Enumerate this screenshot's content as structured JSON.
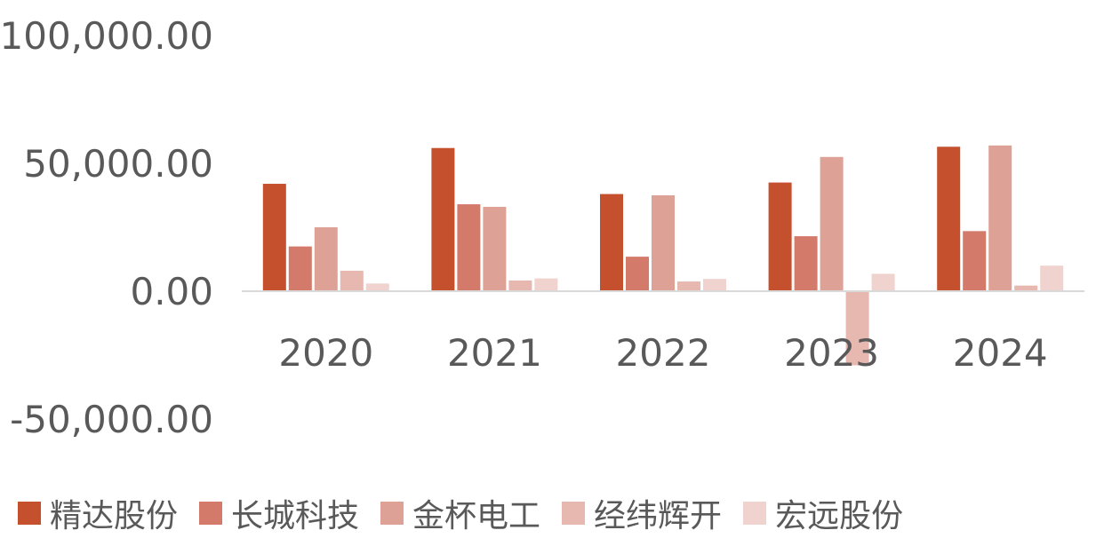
{
  "chart_data": {
    "type": "bar",
    "title": "",
    "xlabel": "",
    "ylabel": "",
    "categories": [
      "2020",
      "2021",
      "2022",
      "2023",
      "2024"
    ],
    "ylim": [
      -50000,
      100000
    ],
    "yticks": [
      "100,000.00",
      "50,000.00",
      "0.00",
      "-50,000.00"
    ],
    "ytick_values": [
      100000,
      50000,
      0,
      -50000
    ],
    "grid": false,
    "legend_position": "bottom",
    "series": [
      {
        "name": "精达股份",
        "color": "#C5502D",
        "values": [
          42000,
          56000,
          38000,
          42500,
          56500
        ]
      },
      {
        "name": "长城科技",
        "color": "#D47A6A",
        "values": [
          17500,
          34000,
          13500,
          21500,
          23500
        ]
      },
      {
        "name": "金杯电工",
        "color": "#DEA195",
        "values": [
          25000,
          33000,
          37500,
          52500,
          57000
        ]
      },
      {
        "name": "经纬辉开",
        "color": "#E6B8B0",
        "values": [
          8000,
          4200,
          3800,
          -29000,
          2200
        ]
      },
      {
        "name": "宏远股份",
        "color": "#F0D3CE",
        "values": [
          3000,
          5000,
          4800,
          6800,
          10000
        ]
      }
    ]
  }
}
